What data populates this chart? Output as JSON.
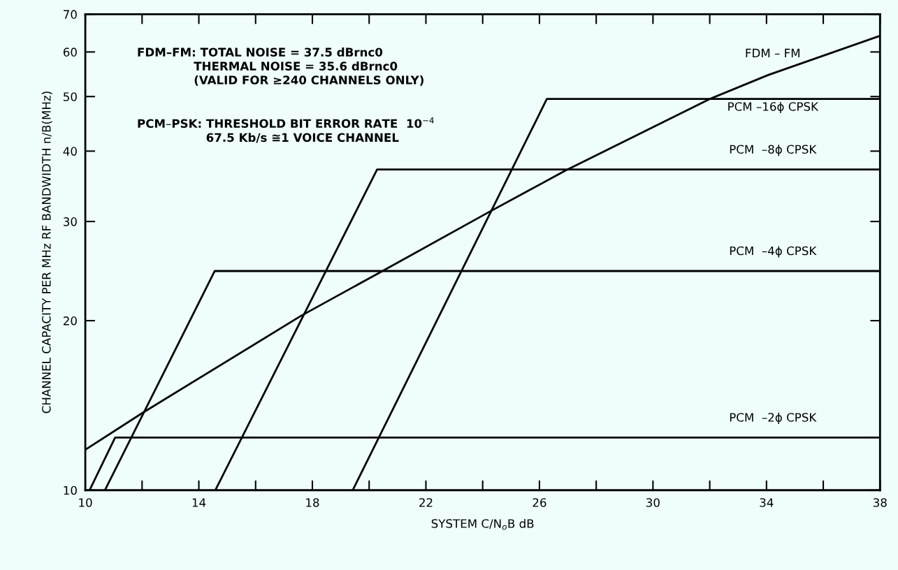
{
  "chart_data": {
    "type": "line",
    "xlabel": "SYSTEM C/N$_{o}$B dB",
    "ylabel": "CHANNEL CAPACITY PER MHz RF BANDWIDTH n/B(MHz)",
    "annotations": [
      "FDM–FM: TOTAL NOISE = 37.5 dBrnc0\n              THERMAL NOISE = 35.6 dBrnc0\n              (VALID FOR ≥240 CHANNELS ONLY)",
      "PCM–PSK: THRESHOLD BIT ERROR RATE  10$^{−4}$\n                 67.5 Kb/s ≅1 VOICE CHANNEL"
    ],
    "series": [
      {
        "name": "FDM – FM",
        "color": "#000000",
        "x": [
          10,
          12.0,
          17.6,
          20.47,
          24.23,
          26.9,
          32.0,
          34.06,
          38
        ],
        "values": [
          11.8,
          13.7,
          20.4,
          24.5,
          31.2,
          36.9,
          49.5,
          54.6,
          64.1
        ]
      },
      {
        "name": "PCM –16ϕ CPSK",
        "color": "#000000",
        "x": [
          19.42,
          26.26,
          38
        ],
        "values": [
          10,
          49.5,
          49.5
        ]
      },
      {
        "name": "PCM  –8ϕ CPSK",
        "color": "#000000",
        "x": [
          14.58,
          20.28,
          38
        ],
        "values": [
          10,
          37.1,
          37.1
        ]
      },
      {
        "name": "PCM  –4ϕ CPSK",
        "color": "#000000",
        "x": [
          10.69,
          14.56,
          38
        ],
        "values": [
          10,
          24.5,
          24.5
        ]
      },
      {
        "name": "PCM  –2ϕ CPSK",
        "color": "#000000",
        "x": [
          10.15,
          11.05,
          38
        ],
        "values": [
          10,
          12.4,
          12.4
        ]
      }
    ],
    "log": "y",
    "xlim": [
      10,
      38
    ],
    "ylim": [
      10,
      70
    ],
    "xticks": [
      10,
      {
        "value": 12,
        "label": null
      },
      14,
      {
        "value": 16,
        "label": null
      },
      18,
      {
        "value": 20,
        "label": null
      },
      22,
      {
        "value": 24,
        "label": null
      },
      26,
      {
        "value": 28,
        "label": null
      },
      30,
      {
        "value": 32,
        "label": null
      },
      34,
      {
        "value": 36,
        "label": null
      },
      38
    ],
    "yticks": [
      10,
      20,
      30,
      40,
      50,
      60,
      70
    ],
    "grid": false,
    "legend": false,
    "marker": "none",
    "line_style": "solid"
  }
}
